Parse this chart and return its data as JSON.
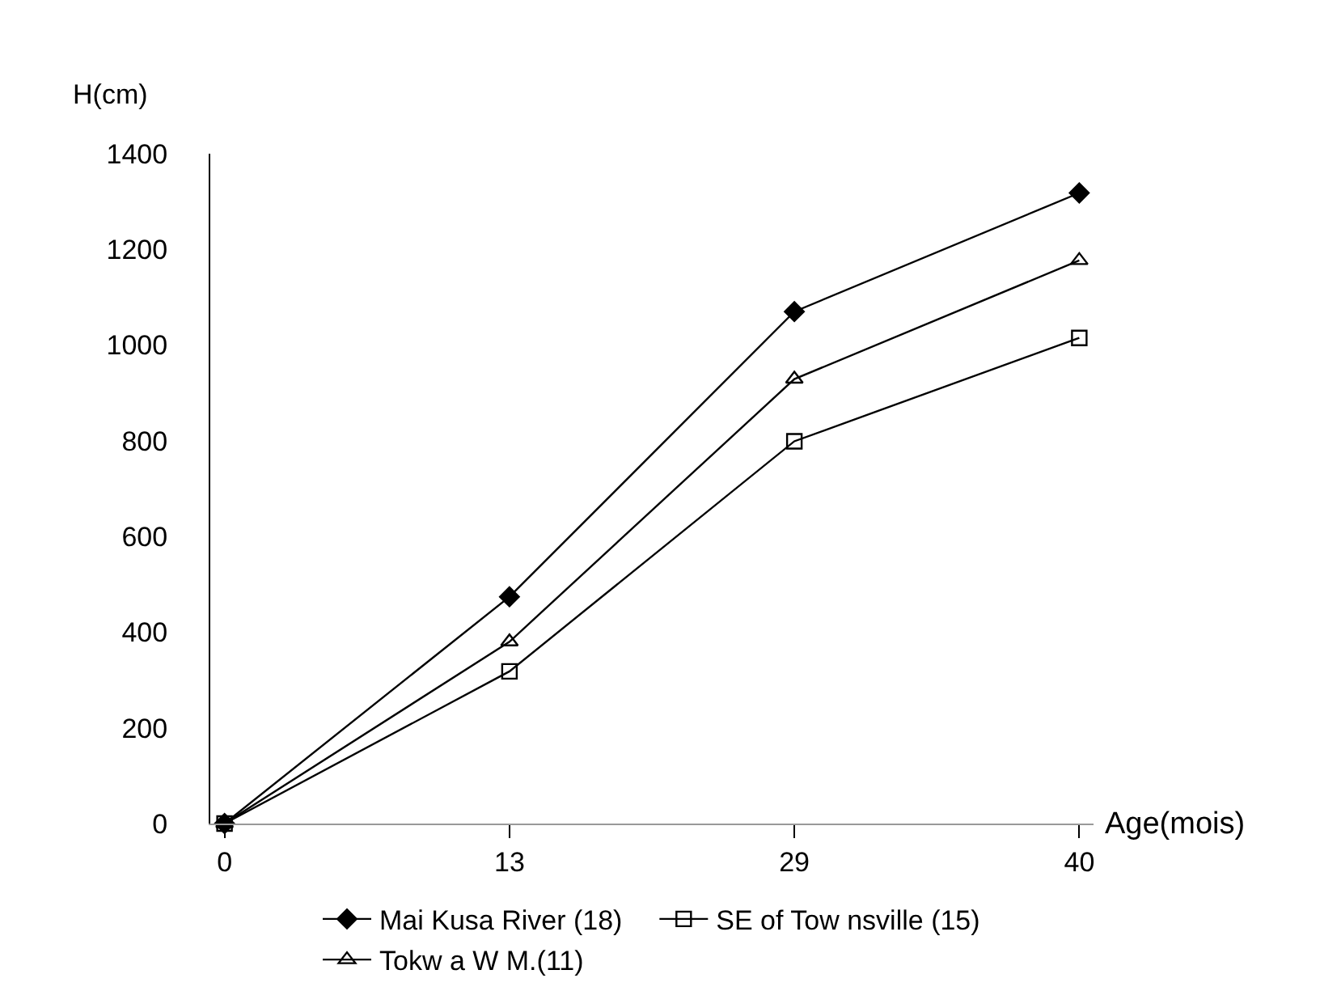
{
  "chart_data": {
    "type": "line",
    "xlabel": "Age(mois)",
    "ylabel": "H(cm)",
    "categories": [
      "0",
      "13",
      "29",
      "40"
    ],
    "series": [
      {
        "name": "Mai Kusa River (18)",
        "color": "#000000",
        "marker": "diamond",
        "values": [
          0,
          474,
          1070,
          1318
        ]
      },
      {
        "name": "SE of Tow nsville (15)",
        "color": "#000000",
        "marker": "square",
        "values": [
          0,
          318,
          799,
          1015
        ]
      },
      {
        "name": "Tokw a W M.(11)",
        "color": "#000000",
        "marker": "triangle",
        "values": [
          0,
          380,
          929,
          1177
        ]
      }
    ],
    "ylim": [
      0,
      1400
    ],
    "yticks": [
      0,
      200,
      400,
      600,
      800,
      1000,
      1200,
      1400
    ],
    "grid": false,
    "legend": "bottom",
    "line_style": "solid"
  }
}
